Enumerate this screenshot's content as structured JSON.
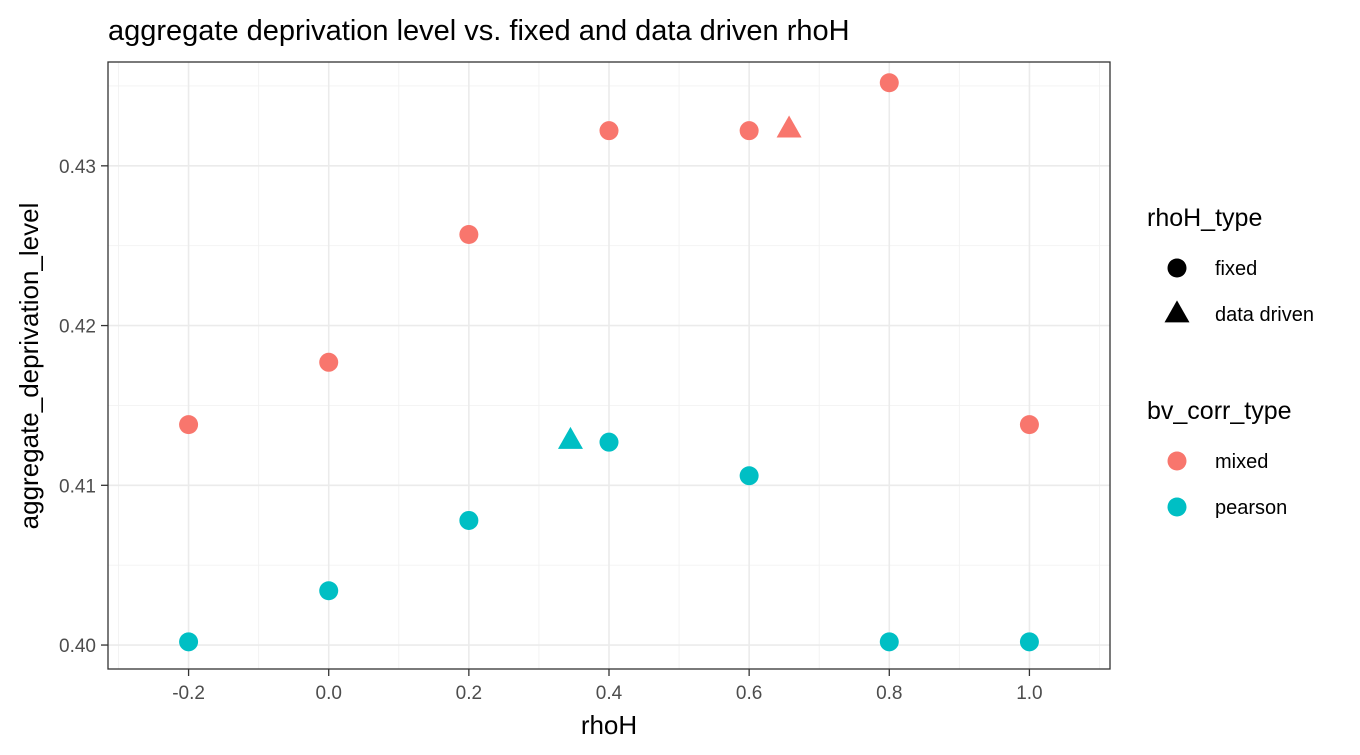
{
  "chart_data": {
    "type": "scatter",
    "title": "aggregate deprivation level vs. fixed and data driven rhoH",
    "xlabel": "rhoH",
    "ylabel": "aggregate_deprivation_level",
    "xlim": [
      -0.315,
      1.115
    ],
    "ylim": [
      0.3985,
      0.4365
    ],
    "x_ticks": [
      -0.2,
      0.0,
      0.2,
      0.4,
      0.6,
      0.8,
      1.0
    ],
    "x_tick_labels": [
      "-0.2",
      "0.0",
      "0.2",
      "0.4",
      "0.6",
      "0.8",
      "1.0"
    ],
    "y_ticks": [
      0.4,
      0.41,
      0.42,
      0.43
    ],
    "y_tick_labels": [
      "0.40",
      "0.41",
      "0.42",
      "0.43"
    ],
    "grid": true,
    "legend_position": "right",
    "colors": {
      "mixed": "#F8766D",
      "pearson": "#00BFC4"
    },
    "legends": [
      {
        "title": "rhoH_type",
        "kind": "shape",
        "entries": [
          {
            "label": "fixed",
            "shape": "circle"
          },
          {
            "label": "data driven",
            "shape": "triangle"
          }
        ]
      },
      {
        "title": "bv_corr_type",
        "kind": "color",
        "entries": [
          {
            "label": "mixed",
            "color": "#F8766D"
          },
          {
            "label": "pearson",
            "color": "#00BFC4"
          }
        ]
      }
    ],
    "points": [
      {
        "x": -0.2,
        "y": 0.4138,
        "rhoH_type": "fixed",
        "bv_corr_type": "mixed"
      },
      {
        "x": 0.0,
        "y": 0.4177,
        "rhoH_type": "fixed",
        "bv_corr_type": "mixed"
      },
      {
        "x": 0.2,
        "y": 0.4257,
        "rhoH_type": "fixed",
        "bv_corr_type": "mixed"
      },
      {
        "x": 0.4,
        "y": 0.4322,
        "rhoH_type": "fixed",
        "bv_corr_type": "mixed"
      },
      {
        "x": 0.6,
        "y": 0.4322,
        "rhoH_type": "fixed",
        "bv_corr_type": "mixed"
      },
      {
        "x": 0.8,
        "y": 0.4352,
        "rhoH_type": "fixed",
        "bv_corr_type": "mixed"
      },
      {
        "x": 1.0,
        "y": 0.4138,
        "rhoH_type": "fixed",
        "bv_corr_type": "mixed"
      },
      {
        "x": 0.657,
        "y": 0.4323,
        "rhoH_type": "data driven",
        "bv_corr_type": "mixed"
      },
      {
        "x": -0.2,
        "y": 0.4002,
        "rhoH_type": "fixed",
        "bv_corr_type": "pearson"
      },
      {
        "x": 0.0,
        "y": 0.4034,
        "rhoH_type": "fixed",
        "bv_corr_type": "pearson"
      },
      {
        "x": 0.2,
        "y": 0.4078,
        "rhoH_type": "fixed",
        "bv_corr_type": "pearson"
      },
      {
        "x": 0.4,
        "y": 0.4127,
        "rhoH_type": "fixed",
        "bv_corr_type": "pearson"
      },
      {
        "x": 0.6,
        "y": 0.4106,
        "rhoH_type": "fixed",
        "bv_corr_type": "pearson"
      },
      {
        "x": 0.8,
        "y": 0.4002,
        "rhoH_type": "fixed",
        "bv_corr_type": "pearson"
      },
      {
        "x": 1.0,
        "y": 0.4002,
        "rhoH_type": "fixed",
        "bv_corr_type": "pearson"
      },
      {
        "x": 0.345,
        "y": 0.4128,
        "rhoH_type": "data driven",
        "bv_corr_type": "pearson"
      }
    ]
  }
}
